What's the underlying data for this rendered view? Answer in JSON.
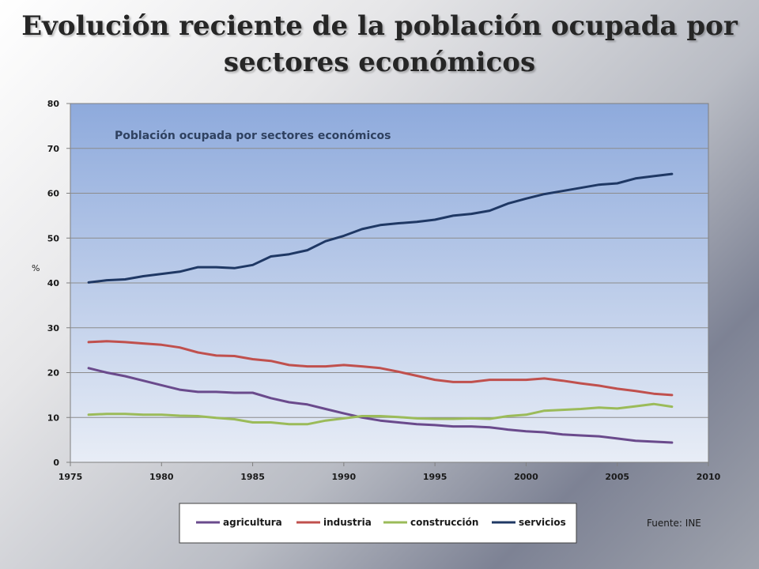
{
  "slide": {
    "title_line1": "Evolución reciente de la población ocupada por",
    "title_line2": "sectores económicos"
  },
  "source": "Fuente: INE",
  "chart_data": {
    "type": "line",
    "title": "Población ocupada por sectores económicos",
    "xlabel": "",
    "ylabel": "%",
    "xlim": [
      1975,
      2010
    ],
    "ylim": [
      0,
      80
    ],
    "x_ticks": [
      1975,
      1980,
      1985,
      1990,
      1995,
      2000,
      2005,
      2010
    ],
    "y_ticks": [
      0,
      10,
      20,
      30,
      40,
      50,
      60,
      70,
      80
    ],
    "grid": true,
    "legend_position": "bottom",
    "x": [
      1976,
      1977,
      1978,
      1979,
      1980,
      1981,
      1982,
      1983,
      1984,
      1985,
      1986,
      1987,
      1988,
      1989,
      1990,
      1991,
      1992,
      1993,
      1994,
      1995,
      1996,
      1997,
      1998,
      1999,
      2000,
      2001,
      2002,
      2003,
      2004,
      2005,
      2006,
      2007,
      2008
    ],
    "series": [
      {
        "name": "agricultura",
        "color": "#6a4a8c",
        "values": [
          21,
          20,
          19.2,
          18.2,
          17.2,
          16.2,
          15.7,
          15.7,
          15.5,
          15.5,
          14.3,
          13.4,
          12.9,
          11.9,
          10.9,
          10,
          9.3,
          8.9,
          8.5,
          8.3,
          8,
          8,
          7.8,
          7.3,
          6.9,
          6.7,
          6.2,
          6,
          5.8,
          5.3,
          4.8,
          4.6,
          4.4
        ]
      },
      {
        "name": "industria",
        "color": "#c0504d",
        "values": [
          26.8,
          27,
          26.8,
          26.5,
          26.2,
          25.6,
          24.5,
          23.8,
          23.7,
          23,
          22.6,
          21.7,
          21.4,
          21.4,
          21.7,
          21.4,
          21,
          20.2,
          19.3,
          18.4,
          17.9,
          17.9,
          18.4,
          18.4,
          18.4,
          18.7,
          18.2,
          17.6,
          17.1,
          16.4,
          15.9,
          15.3,
          15
        ]
      },
      {
        "name": "construcción",
        "color": "#9bbb59",
        "values": [
          10.6,
          10.8,
          10.8,
          10.6,
          10.6,
          10.4,
          10.3,
          9.9,
          9.6,
          8.9,
          8.9,
          8.5,
          8.5,
          9.3,
          9.8,
          10.3,
          10.3,
          10.1,
          9.8,
          9.7,
          9.7,
          9.8,
          9.7,
          10.3,
          10.6,
          11.5,
          11.7,
          11.9,
          12.2,
          12,
          12.5,
          13,
          12.4
        ]
      },
      {
        "name": "servicios",
        "color": "#1f3864",
        "values": [
          40.1,
          40.6,
          40.8,
          41.5,
          42,
          42.5,
          43.5,
          43.5,
          43.3,
          44,
          45.9,
          46.4,
          47.3,
          49.3,
          50.5,
          52,
          52.9,
          53.3,
          53.6,
          54.1,
          55,
          55.4,
          56.1,
          57.7,
          58.8,
          59.8,
          60.5,
          61.2,
          61.9,
          62.2,
          63.3,
          63.8,
          64.3
        ]
      }
    ]
  }
}
